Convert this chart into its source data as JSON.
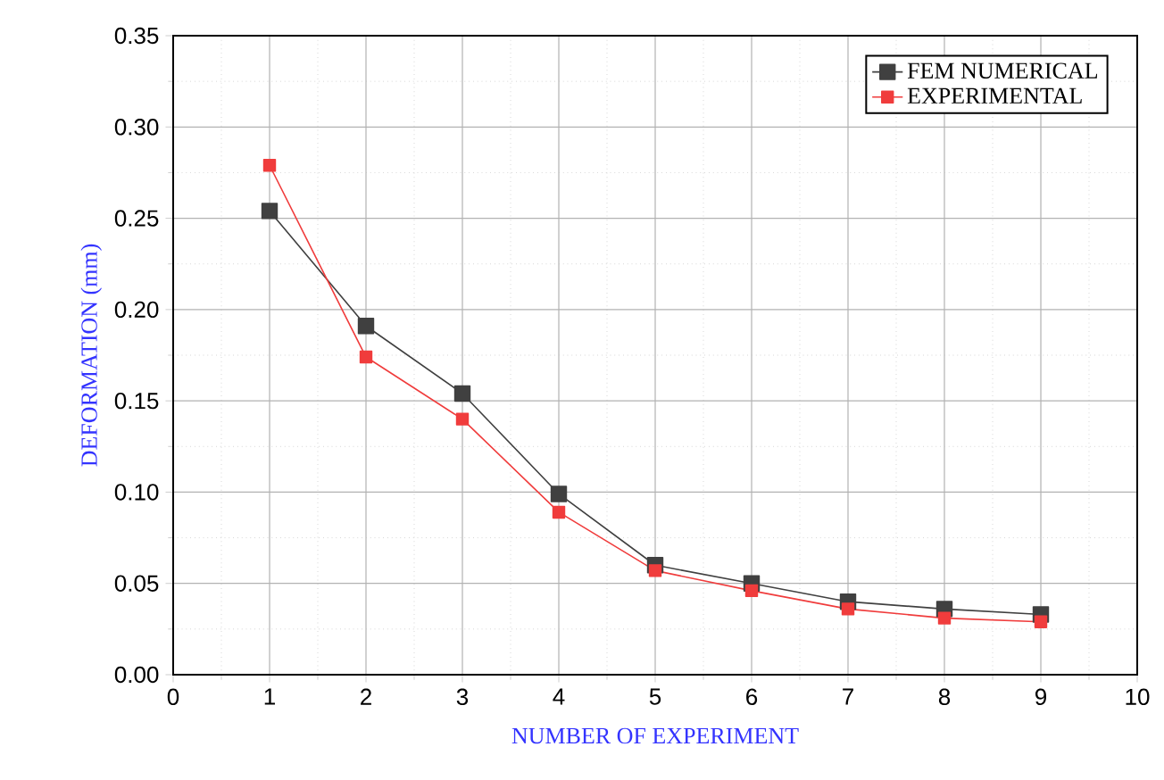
{
  "chart_data": {
    "type": "line",
    "xlabel": "NUMBER OF EXPERIMENT",
    "ylabel": "DEFORMATION (mm)",
    "x": [
      1,
      2,
      3,
      4,
      5,
      6,
      7,
      8,
      9
    ],
    "series": [
      {
        "name": "FEM NUMERICAL",
        "color": "#404040",
        "values": [
          0.254,
          0.191,
          0.154,
          0.099,
          0.06,
          0.05,
          0.04,
          0.036,
          0.033
        ]
      },
      {
        "name": "EXPERIMENTAL",
        "color": "#f03c3c",
        "values": [
          0.279,
          0.174,
          0.14,
          0.089,
          0.057,
          0.046,
          0.036,
          0.031,
          0.029
        ]
      }
    ],
    "xlim": [
      0,
      10
    ],
    "ylim": [
      0,
      0.35
    ],
    "xticks": [
      0,
      1,
      2,
      3,
      4,
      5,
      6,
      7,
      8,
      9,
      10
    ],
    "yticks": [
      {
        "value": 0,
        "label": "0.00"
      },
      {
        "value": 0.05,
        "label": "0.05"
      },
      {
        "value": 0.1,
        "label": "0.10"
      },
      {
        "value": 0.15,
        "label": "0.15"
      },
      {
        "value": 0.2,
        "label": "0.20"
      },
      {
        "value": 0.25,
        "label": "0.25"
      },
      {
        "value": 0.3,
        "label": "0.30"
      },
      {
        "value": 0.35,
        "label": "0.35"
      }
    ],
    "grid": true,
    "legend": "top right",
    "marker": "square",
    "line_style": "solid"
  }
}
